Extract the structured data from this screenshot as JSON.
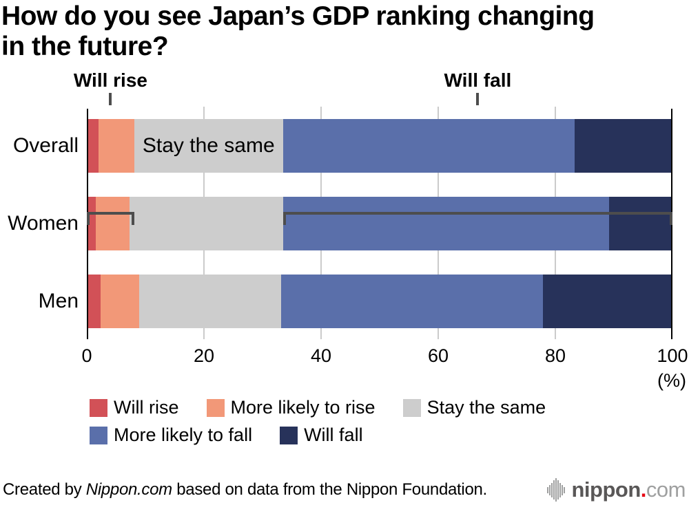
{
  "title": {
    "line1": "How do you see Japan’s GDP ranking changing",
    "line2": "in the future?"
  },
  "annotations": {
    "stay_label": "Stay the same"
  },
  "chart_data": {
    "type": "bar",
    "orientation": "horizontal-stacked",
    "categories": [
      "Overall",
      "Women",
      "Men"
    ],
    "series": [
      {
        "name": "Will rise",
        "color": "#d25157",
        "values": [
          2.0,
          1.5,
          2.3
        ]
      },
      {
        "name": "More likely to rise",
        "color": "#f29878",
        "values": [
          6.1,
          5.8,
          6.6
        ]
      },
      {
        "name": "Stay the same",
        "color": "#cdcdcd",
        "values": [
          25.4,
          26.2,
          24.3
        ]
      },
      {
        "name": "More likely to fall",
        "color": "#5a6faa",
        "values": [
          49.8,
          55.7,
          44.7
        ]
      },
      {
        "name": "Will fall",
        "color": "#27325a",
        "values": [
          16.7,
          10.8,
          22.1
        ]
      }
    ],
    "xlim": [
      0,
      100
    ],
    "xticks": [
      0,
      20,
      40,
      60,
      80,
      100
    ],
    "xlabel": "(%)",
    "grid": true,
    "legend_position": "bottom",
    "bracket_annotations": [
      {
        "label": "Will rise",
        "from": 0,
        "to": 8.1
      },
      {
        "label": "Will fall",
        "from": 33.5,
        "to": 100
      }
    ],
    "segment_label": {
      "text": "Stay the same",
      "category": "Overall",
      "series": "Stay the same"
    },
    "colors_note": {
      "bracket": "#4d4d4d",
      "grid": "#cbcbcb",
      "axis": "#000000"
    }
  },
  "legend": {
    "row_split": 3
  },
  "footer": {
    "credit_prefix": "Created by ",
    "credit_site": "Nippon.com",
    "credit_suffix": " based on data from the Nippon Foundation.",
    "logo": {
      "brand": "nippon",
      "dot": ".",
      "tld": "com"
    }
  }
}
